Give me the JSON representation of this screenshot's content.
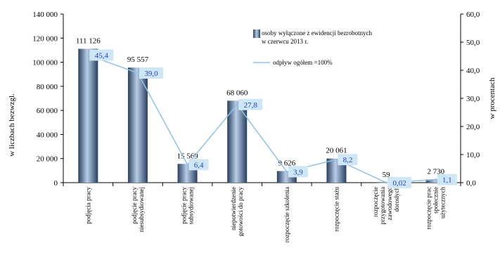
{
  "chart_data": {
    "type": "bar",
    "categories": [
      "podjęcia pracy",
      "podjęcie pracy niesubsydiowanej",
      "podjęcie pracy subsydiowanej",
      "niepotwierdzenie gotowości do pracy",
      "rozpoczęcie szkolenia",
      "rozpoczęcie stażu",
      "rozpoczęcie przygotowania zawodowego dorosłych",
      "rozpoczęcie prac społecznie użytecznych"
    ],
    "categories_lines": [
      [
        "podjęcia pracy"
      ],
      [
        "podjęcie pracy",
        "niesubsydiowanej"
      ],
      [
        "podjęcie pracy",
        "subsydiowanej"
      ],
      [
        "niepotwierdzenie",
        "gotowości do pracy"
      ],
      [
        "rozpoczęcie szkolenia"
      ],
      [
        "rozpoczęcie stażu"
      ],
      [
        "rozpoczęcie",
        "przygotowania",
        "zawodowego",
        "dorosłych"
      ],
      [
        "rozpoczęcie prac",
        "społecznie",
        "użytecznych"
      ]
    ],
    "series": [
      {
        "name": "osoby wyłączone z ewidencji bezrobotnych w czerwcu 2013 r.",
        "type": "bar",
        "axis": "left",
        "values": [
          111126,
          95557,
          15569,
          68060,
          9626,
          20061,
          59,
          2730
        ],
        "labels": [
          "111 126",
          "95 557",
          "15 569",
          "68 060",
          "9 626",
          "20 061",
          "59",
          "2 730"
        ]
      },
      {
        "name": "odpływ ogółem =100%",
        "type": "line",
        "axis": "right",
        "values": [
          45.4,
          39.0,
          6.4,
          27.8,
          3.9,
          8.2,
          0.02,
          1.1
        ],
        "labels": [
          "45,4",
          "39,0",
          "6,4",
          "27,8",
          "3,9",
          "8,2",
          "0,02",
          "1,1"
        ]
      }
    ],
    "ylabel": "w liczbach bezwzgl.",
    "y2label": "w procentach",
    "ylim": [
      0,
      140000
    ],
    "y2lim": [
      0,
      60
    ],
    "yticks": [
      0,
      20000,
      40000,
      60000,
      80000,
      100000,
      120000,
      140000
    ],
    "ytick_labels": [
      "0",
      "20 000",
      "40 000",
      "60 000",
      "80 000",
      "100 000",
      "120 000",
      "140 000"
    ],
    "y2ticks": [
      0,
      10,
      20,
      30,
      40,
      50,
      60
    ],
    "y2tick_labels": [
      "0,0",
      "10,0",
      "20,0",
      "30,0",
      "40,0",
      "50,0",
      "60,0"
    ],
    "legend": {
      "position": "top-right",
      "bar_lines": [
        "osoby wyłączone z ewidencji bezrobotnych",
        "w czerwcu 2013 r."
      ],
      "line_text": "odpływ ogółem =100%"
    },
    "colors": {
      "bar_dark": "#27405e",
      "bar_light": "#b9cde6",
      "line": "#8fc3ea",
      "point_label_bg": "#cfe6f5",
      "point_label_text": "#1f3fd6"
    }
  }
}
